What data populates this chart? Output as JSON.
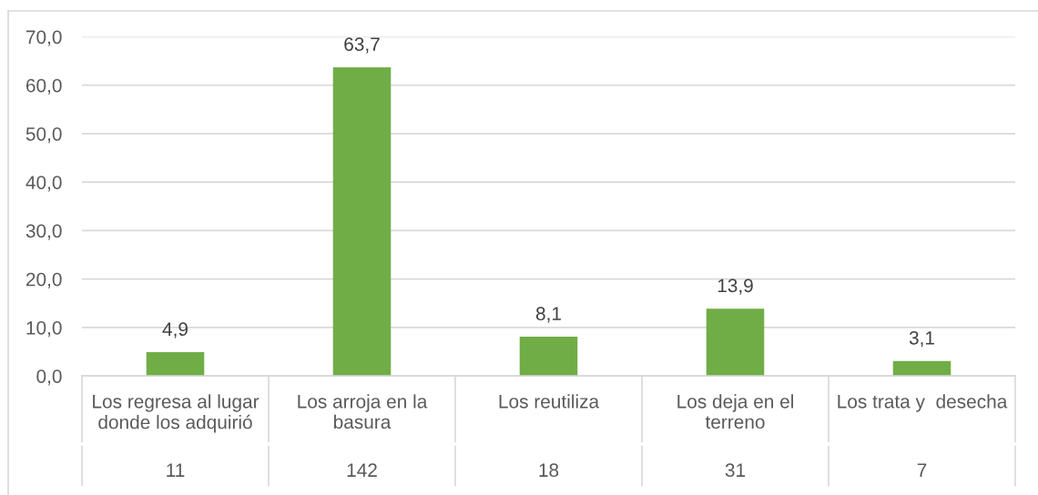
{
  "chart_data": {
    "type": "bar",
    "categories": [
      "Los regresa al lugar donde los adquirió",
      "Los arroja en la basura",
      "Los reutiliza",
      "Los deja en el terreno",
      "Los trata y  desecha"
    ],
    "values": [
      4.9,
      63.7,
      8.1,
      13.9,
      3.1
    ],
    "color": "#70ad47",
    "value_labels": [
      "4,9",
      "63,7",
      "8,1",
      "13,9",
      "3,1"
    ],
    "ylim": [
      0,
      70
    ],
    "yticks": [
      {
        "value": 0,
        "label": "0,0"
      },
      {
        "value": 10,
        "label": "10,0"
      },
      {
        "value": 20,
        "label": "20,0"
      },
      {
        "value": 30,
        "label": "30,0"
      },
      {
        "value": 40,
        "label": "40,0"
      },
      {
        "value": 50,
        "label": "50,0"
      },
      {
        "value": 60,
        "label": "60,0"
      },
      {
        "value": 70,
        "label": "70,0"
      }
    ],
    "grid": "y",
    "annotations": [
      "11",
      "142",
      "18",
      "31",
      "7"
    ]
  }
}
